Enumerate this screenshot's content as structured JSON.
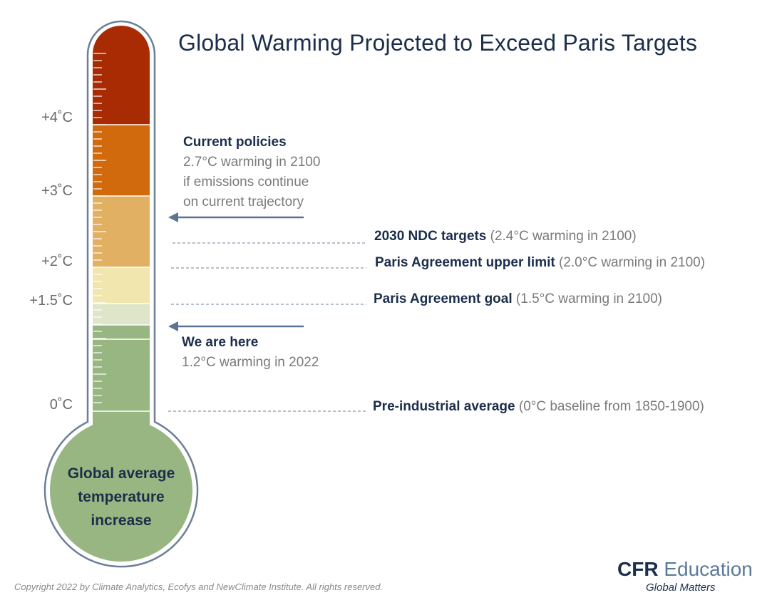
{
  "title": "Global Warming Projected to Exceed Paris Targets",
  "scale_labels": [
    "+4˚C",
    "+3˚C",
    "+2˚C",
    "+1.5˚C",
    "0˚C"
  ],
  "current_policies": {
    "heading": "Current policies",
    "lines": [
      "2.7°C warming in 2100",
      "if emissions continue",
      "on current trajectory"
    ]
  },
  "markers": [
    {
      "strong": "2030 NDC targets",
      "light": " (2.4°C warming in 2100)"
    },
    {
      "strong": "Paris Agreement upper limit",
      "light": " (2.0°C warming in 2100)"
    },
    {
      "strong": "Paris Agreement goal",
      "light": " (1.5°C warming in 2100)"
    },
    {
      "strong": "Pre-industrial average",
      "light": " (0°C baseline from 1850-1900)"
    }
  ],
  "we_are_here": {
    "heading": "We are here",
    "line": "1.2°C warming in 2022"
  },
  "bulb_text": [
    "Global average",
    "temperature",
    "increase"
  ],
  "copyright": "Copyright 2022 by Climate Analytics, Ecofys and NewClimate Institute. All rights reserved.",
  "logo": {
    "brand_strong": "CFR",
    "brand_light": " Education",
    "tagline": "Global Matters"
  },
  "colors": {
    "band_top": "#a82b04",
    "band_4_3": "#d06a0d",
    "band_3_2": "#e2b063",
    "band_2_15": "#f1e6ae",
    "band_15_12": "#dfe5c8",
    "band_low": "#98b682",
    "outline": "#6c7f95",
    "arrow": "#5a7591",
    "text_dark": "#1b2e4b"
  }
}
